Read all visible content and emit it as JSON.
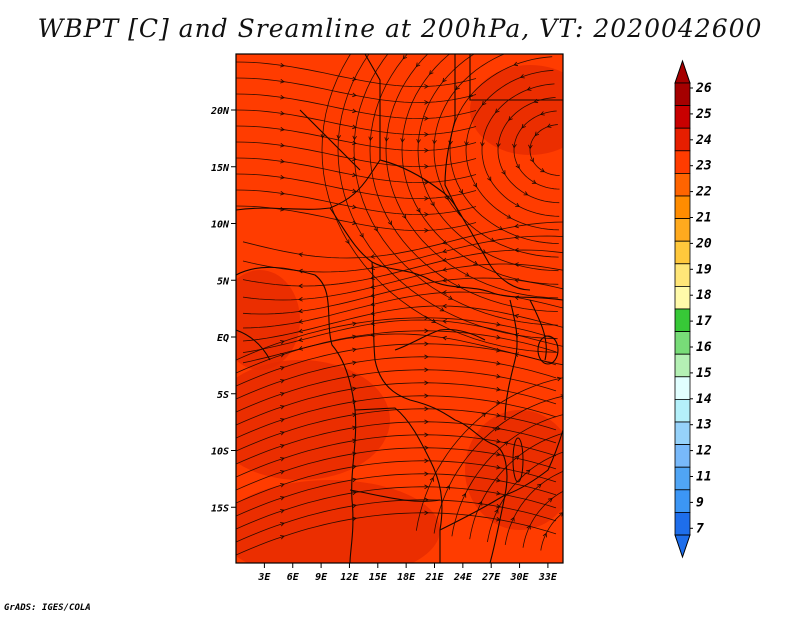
{
  "title": "WBPT [C] and Sreamline at 200hPa, VT: 2020042600",
  "footer": "GrADS: IGES/COLA",
  "map": {
    "lon_range": [
      0,
      34
    ],
    "lat_range": [
      -20,
      24
    ],
    "x_ticks": [
      "3E",
      "6E",
      "9E",
      "12E",
      "15E",
      "18E",
      "21E",
      "24E",
      "27E",
      "30E",
      "33E"
    ],
    "y_ticks": [
      "20N",
      "15N",
      "10N",
      "5N",
      "EQ",
      "5S",
      "10S",
      "15S"
    ],
    "field_color": "#ff3c00",
    "stream_color": "#1a0800"
  },
  "colorbar": {
    "labels": [
      "26",
      "25",
      "24",
      "23",
      "22",
      "21",
      "20",
      "19",
      "18",
      "17",
      "16",
      "15",
      "14",
      "13",
      "12",
      "11",
      "9",
      "7"
    ],
    "colors": [
      "#a50000",
      "#c80000",
      "#e61e00",
      "#ff3c00",
      "#ff6400",
      "#ff8c00",
      "#ffaa1e",
      "#ffc83c",
      "#ffe678",
      "#fffaaa",
      "#37c837",
      "#78dc78",
      "#b4f0b4",
      "#e1ffff",
      "#b4f0fa",
      "#96d2fa",
      "#78b9fa",
      "#50a5f5",
      "#3c96f5",
      "#1e6eeb"
    ]
  }
}
